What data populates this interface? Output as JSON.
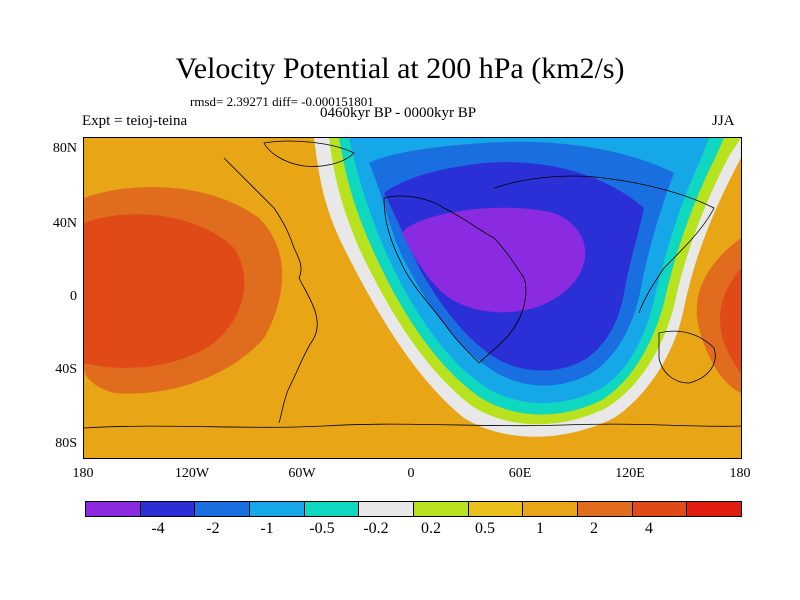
{
  "title": "Velocity Potential at 200 hPa (km2/s)",
  "stats": "rmsd= 2.39271  diff= -0.000151801",
  "experiment": "Expt = teioj-teina",
  "period": "0460kyr BP - 0000kyr BP",
  "season": "JJA",
  "lat_ticks": [
    "80N",
    "40N",
    "0",
    "40S",
    "80S"
  ],
  "lon_ticks": [
    "180",
    "120W",
    "60W",
    "0",
    "60E",
    "120E",
    "180"
  ],
  "colorbar": {
    "colors": [
      "#8a2be2",
      "#2b2fd6",
      "#1a6fe0",
      "#15a7e8",
      "#10d7c0",
      "#e8e8e8",
      "#b9e21e",
      "#e8c21a",
      "#e8a516",
      "#e06d1e",
      "#e04a16",
      "#e01d10"
    ],
    "labels": [
      "-4",
      "-2",
      "-1",
      "-0.5",
      "-0.2",
      "0.2",
      "0.5",
      "1",
      "2",
      "4"
    ]
  },
  "colors": {
    "strong_positive": "#e04a16",
    "positive": "#e06d1e",
    "weak_positive": "#e8a516",
    "neutral": "#e8e8e8",
    "negative": "#15a7e8",
    "strong_negative": "#2b2fd6",
    "min_negative": "#8a2be2"
  }
}
